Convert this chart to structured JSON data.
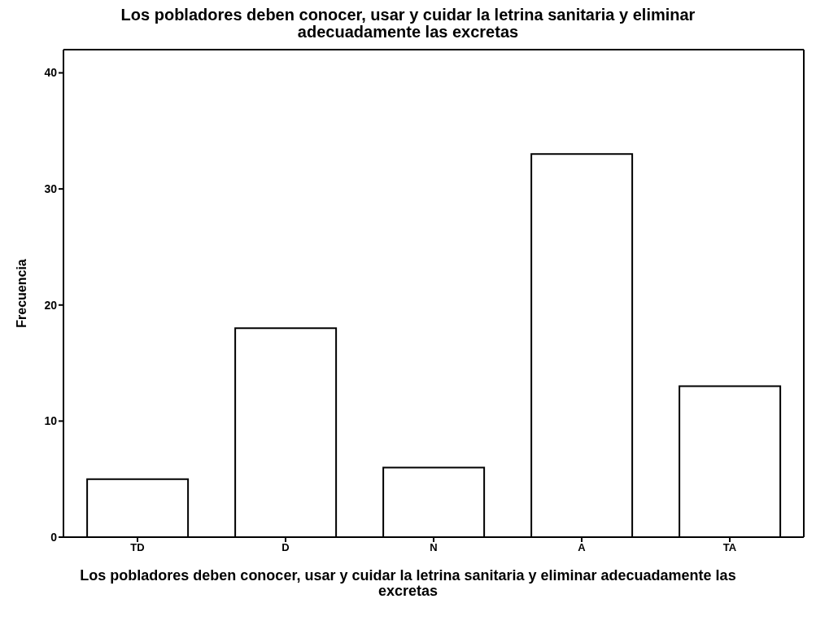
{
  "chart_data": {
    "type": "bar",
    "title": "Los pobladores deben conocer, usar y cuidar la letrina sanitaria y eliminar adecuadamente las excretas",
    "xlabel": "Los pobladores deben conocer, usar y cuidar la letrina sanitaria y eliminar adecuadamente las excretas",
    "ylabel": "Frecuencia",
    "categories": [
      "TD",
      "D",
      "N",
      "A",
      "TA"
    ],
    "values": [
      5,
      18,
      6,
      33,
      13
    ],
    "color": "#ffffff",
    "ylim": [
      0,
      42
    ],
    "yticks": [
      0,
      10,
      20,
      30,
      40
    ],
    "grid": false
  }
}
